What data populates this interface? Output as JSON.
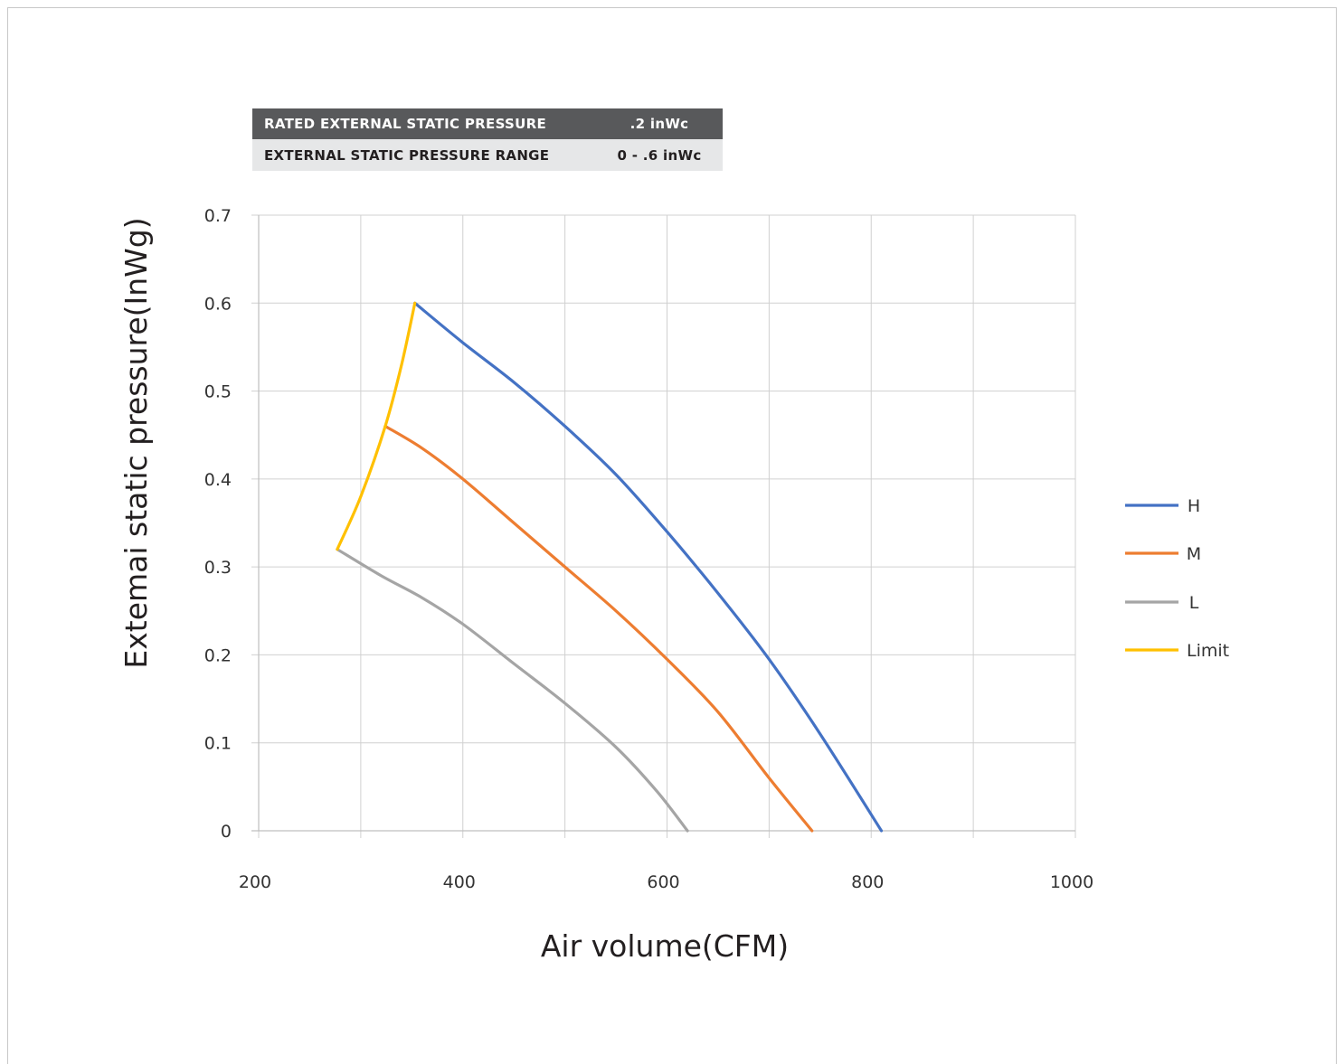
{
  "spec_table": {
    "rows": [
      {
        "label": "RATED EXTERNAL STATIC PRESSURE",
        "value": ".2 inWc"
      },
      {
        "label": "EXTERNAL STATIC PRESSURE RANGE",
        "value": "0 - .6 inWc"
      }
    ]
  },
  "chart_data": {
    "type": "line",
    "xlabel": "Air volume(CFM)",
    "ylabel": "Extemai static pressure(InWg)",
    "xlim": [
      200,
      1000
    ],
    "ylim": [
      0,
      0.7
    ],
    "xticks": [
      "200",
      "400",
      "600",
      "800",
      "1000"
    ],
    "yticks": [
      "0",
      "0.1",
      "0.2",
      "0.3",
      "0.4",
      "0.5",
      "0.6",
      "0.7"
    ],
    "grid": true,
    "legend_position": "right",
    "series": [
      {
        "name": "H",
        "color": "#4472c4",
        "points": [
          [
            353,
            0.6
          ],
          [
            400,
            0.555
          ],
          [
            450,
            0.51
          ],
          [
            500,
            0.46
          ],
          [
            550,
            0.405
          ],
          [
            600,
            0.34
          ],
          [
            650,
            0.27
          ],
          [
            700,
            0.195
          ],
          [
            750,
            0.11
          ],
          [
            810,
            0.0
          ]
        ]
      },
      {
        "name": "M",
        "color": "#ed7d31",
        "points": [
          [
            324,
            0.46
          ],
          [
            360,
            0.435
          ],
          [
            400,
            0.4
          ],
          [
            450,
            0.35
          ],
          [
            500,
            0.3
          ],
          [
            550,
            0.25
          ],
          [
            600,
            0.195
          ],
          [
            650,
            0.135
          ],
          [
            700,
            0.06
          ],
          [
            742,
            0.0
          ]
        ]
      },
      {
        "name": "L",
        "color": "#a5a5a5",
        "points": [
          [
            277,
            0.32
          ],
          [
            320,
            0.29
          ],
          [
            360,
            0.265
          ],
          [
            400,
            0.235
          ],
          [
            450,
            0.19
          ],
          [
            500,
            0.145
          ],
          [
            550,
            0.095
          ],
          [
            590,
            0.045
          ],
          [
            620,
            0.0
          ]
        ]
      },
      {
        "name": "Limit",
        "color": "#ffc000",
        "points": [
          [
            277,
            0.32
          ],
          [
            300,
            0.38
          ],
          [
            324,
            0.46
          ],
          [
            340,
            0.53
          ],
          [
            353,
            0.6
          ]
        ]
      }
    ]
  }
}
